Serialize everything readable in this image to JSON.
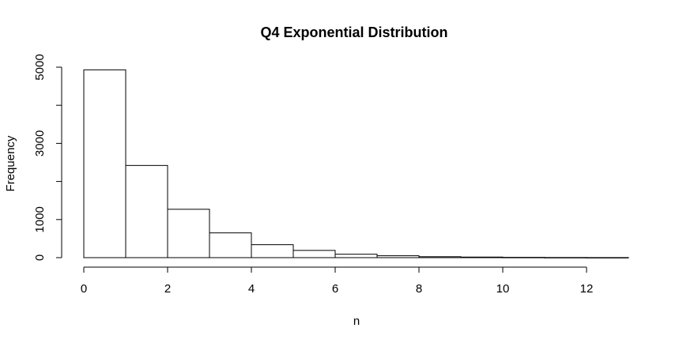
{
  "chart_data": {
    "type": "bar",
    "title": "Q4 Exponential Distribution",
    "xlabel": "n",
    "ylabel": "Frequency",
    "bins": [
      {
        "start": 0,
        "end": 1,
        "count": 4930
      },
      {
        "start": 1,
        "end": 2,
        "count": 2420
      },
      {
        "start": 2,
        "end": 3,
        "count": 1270
      },
      {
        "start": 3,
        "end": 4,
        "count": 650
      },
      {
        "start": 4,
        "end": 5,
        "count": 340
      },
      {
        "start": 5,
        "end": 6,
        "count": 190
      },
      {
        "start": 6,
        "end": 7,
        "count": 90
      },
      {
        "start": 7,
        "end": 8,
        "count": 50
      },
      {
        "start": 8,
        "end": 9,
        "count": 25
      },
      {
        "start": 9,
        "end": 10,
        "count": 15
      },
      {
        "start": 10,
        "end": 11,
        "count": 8
      },
      {
        "start": 11,
        "end": 12,
        "count": 4
      },
      {
        "start": 12,
        "end": 13,
        "count": 2
      }
    ],
    "xlim": [
      0,
      13
    ],
    "ylim": [
      0,
      5000
    ],
    "x_ticks": [
      0,
      2,
      4,
      6,
      8,
      10,
      12
    ],
    "y_ticks": [
      0,
      1000,
      2000,
      3000,
      4000,
      5000
    ],
    "y_tick_labels": [
      {
        "value": 0,
        "label": "0"
      },
      {
        "value": 1000,
        "label": "1000"
      },
      {
        "value": 3000,
        "label": "3000"
      },
      {
        "value": 5000,
        "label": "5000"
      }
    ],
    "grid": false,
    "colors": {
      "bar_fill": "#ffffff",
      "bar_stroke": "#000000"
    }
  }
}
